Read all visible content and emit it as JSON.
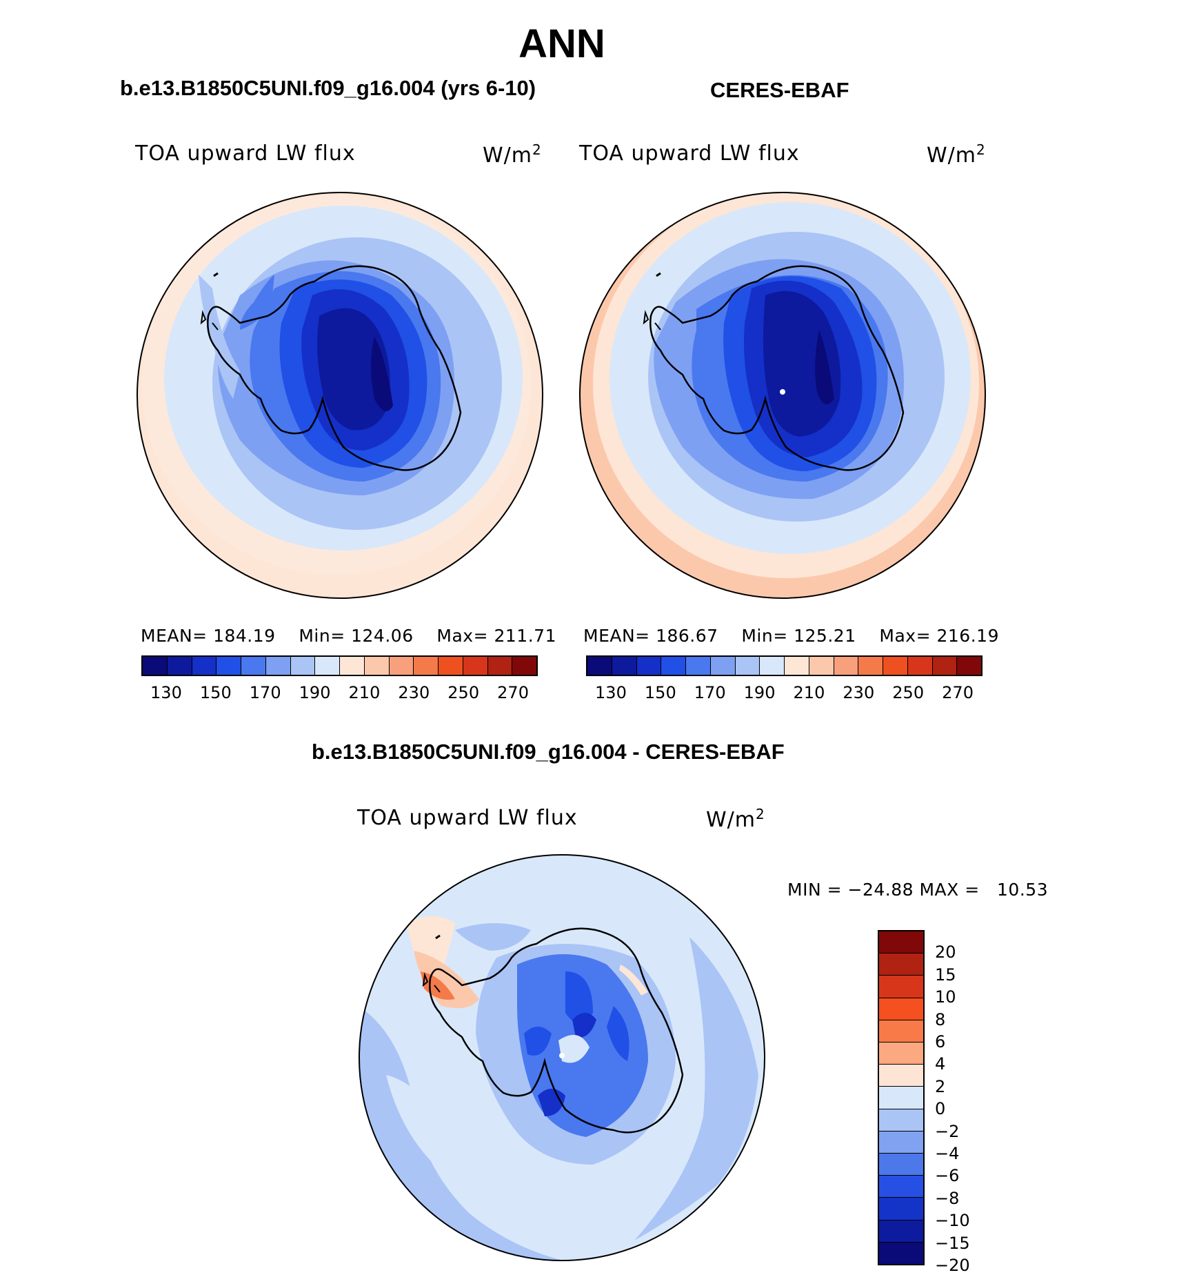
{
  "title": "ANN",
  "panels": [
    {
      "case_title": "b.e13.B1850C5UNI.f09_g16.004 (yrs 6-10)",
      "variable": "TOA upward LW flux",
      "unit": "W/m",
      "unit_sup": "2",
      "stats": {
        "mean_label": "MEAN=",
        "mean": "184.19",
        "min_label": "Min=",
        "min": "124.06",
        "max_label": "Max=",
        "max": "211.71"
      }
    },
    {
      "case_title": "CERES-EBAF",
      "variable": "TOA upward LW flux",
      "unit": "W/m",
      "unit_sup": "2",
      "stats": {
        "mean_label": "MEAN=",
        "mean": "186.67",
        "min_label": "Min=",
        "min": "125.21",
        "max_label": "Max=",
        "max": "216.19"
      }
    }
  ],
  "diff_panel": {
    "case_title": "b.e13.B1850C5UNI.f09_g16.004 - CERES-EBAF",
    "variable": "TOA upward LW flux",
    "unit": "W/m",
    "unit_sup": "2",
    "minmax": {
      "min_label": "MIN =",
      "min": "−24.88",
      "max_label": "MAX =",
      "max": "10.53"
    }
  },
  "colorbar_abs": {
    "colors": [
      "#0a0a78",
      "#0d1a9e",
      "#1430c8",
      "#2050e6",
      "#4a78ee",
      "#7ea0f2",
      "#aac4f6",
      "#d8e8fa",
      "#fde6d6",
      "#fcc8ac",
      "#f8a07c",
      "#f47a4a",
      "#ee5020",
      "#d8361a",
      "#b02212",
      "#800808"
    ],
    "tick_labels": [
      "130",
      "150",
      "170",
      "190",
      "210",
      "230",
      "250",
      "270"
    ]
  },
  "colorbar_diff": {
    "colors": [
      "#800808",
      "#b02212",
      "#d8361a",
      "#f45020",
      "#f87a48",
      "#fca880",
      "#fde4d4",
      "#d8e8fa",
      "#aac4f6",
      "#80a2f0",
      "#4c78ea",
      "#2650e4",
      "#1434c8",
      "#0d1c9e",
      "#0a0a78"
    ],
    "tick_labels": [
      "20",
      "15",
      "10",
      "8",
      "6",
      "4",
      "2",
      "0",
      "−2",
      "−4",
      "−6",
      "−8",
      "−10",
      "−15",
      "−20"
    ]
  }
}
